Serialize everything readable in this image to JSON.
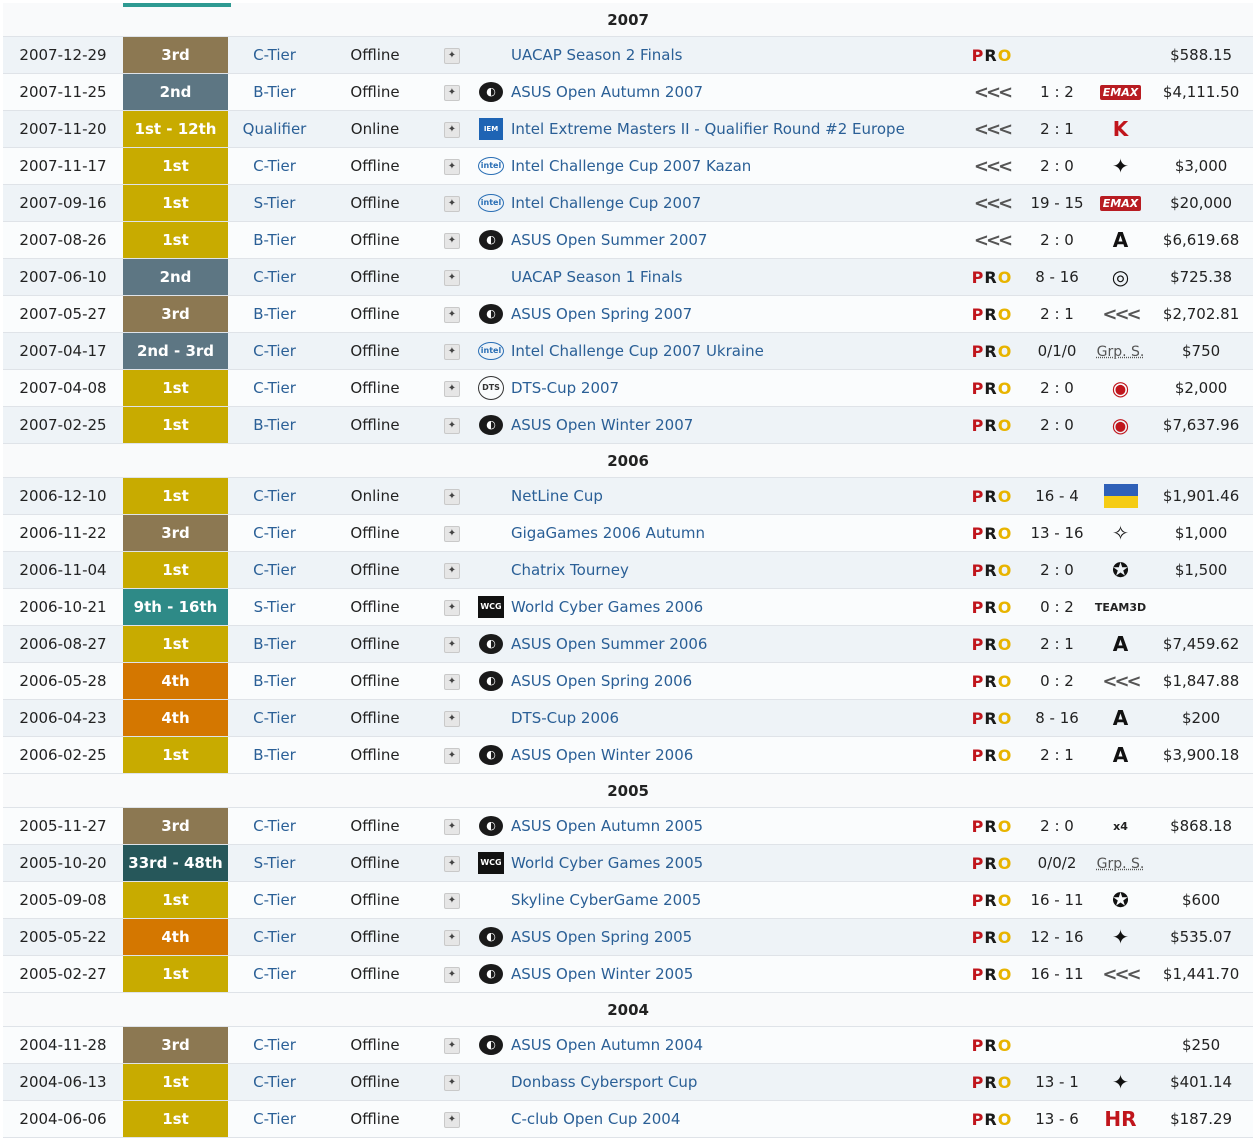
{
  "colors": {
    "1st": "#c8ab00",
    "2nd": "#5d7683",
    "3rd": "#8c7852",
    "4th": "#d47700",
    "qual": "#c8ab00",
    "range_teal": "#2e8a87",
    "range_dark": "#26575a",
    "link": "#2a5f96"
  },
  "table": {
    "groups": [
      {
        "year": "2007",
        "rows": [
          {
            "date": "2007-12-29",
            "place": "3rd",
            "pc": "3rd",
            "tier": "C-Tier",
            "type": "Offline",
            "logo": "",
            "name": "UACAP Season 2 Finals",
            "team": "pro",
            "score": "",
            "opp": "",
            "opp_kind": "none",
            "prize": "$588.15"
          },
          {
            "date": "2007-11-25",
            "place": "2nd",
            "pc": "2nd",
            "tier": "B-Tier",
            "type": "Offline",
            "logo": "asus",
            "name": "ASUS Open Autumn 2007",
            "team": "chev",
            "score": "1 : 2",
            "opp": "EMAX",
            "opp_kind": "emax",
            "prize": "$4,111.50"
          },
          {
            "date": "2007-11-20",
            "place": "1st - 12th",
            "pc": "qual",
            "tier": "Qualifier",
            "type": "Online",
            "logo": "iem",
            "name": "Intel Extreme Masters II - Qualifier Round #2 Europe",
            "team": "chev",
            "score": "2 : 1",
            "opp": "K",
            "opp_kind": "red",
            "prize": ""
          },
          {
            "date": "2007-11-17",
            "place": "1st",
            "pc": "1st",
            "tier": "C-Tier",
            "type": "Offline",
            "logo": "intel",
            "name": "Intel Challenge Cup 2007 Kazan",
            "team": "chev",
            "score": "2 : 0",
            "opp": "✦",
            "opp_kind": "sym",
            "prize": "$3,000"
          },
          {
            "date": "2007-09-16",
            "place": "1st",
            "pc": "1st",
            "tier": "S-Tier",
            "type": "Offline",
            "logo": "intel",
            "name": "Intel Challenge Cup 2007",
            "team": "chev",
            "score": "19 - 15",
            "opp": "EMAX",
            "opp_kind": "emax",
            "prize": "$20,000"
          },
          {
            "date": "2007-08-26",
            "place": "1st",
            "pc": "1st",
            "tier": "B-Tier",
            "type": "Offline",
            "logo": "asus",
            "name": "ASUS Open Summer 2007",
            "team": "chev",
            "score": "2 : 0",
            "opp": "A",
            "opp_kind": "sym",
            "prize": "$6,619.68"
          },
          {
            "date": "2007-06-10",
            "place": "2nd",
            "pc": "2nd",
            "tier": "C-Tier",
            "type": "Offline",
            "logo": "",
            "name": "UACAP Season 1 Finals",
            "team": "pro",
            "score": "8 - 16",
            "opp": "◎",
            "opp_kind": "sym",
            "prize": "$725.38"
          },
          {
            "date": "2007-05-27",
            "place": "3rd",
            "pc": "3rd",
            "tier": "B-Tier",
            "type": "Offline",
            "logo": "asus",
            "name": "ASUS Open Spring 2007",
            "team": "pro",
            "score": "2 : 1",
            "opp": "<<<",
            "opp_kind": "chev",
            "prize": "$2,702.81"
          },
          {
            "date": "2007-04-17",
            "place": "2nd - 3rd",
            "pc": "2nd",
            "tier": "C-Tier",
            "type": "Offline",
            "logo": "intel",
            "name": "Intel Challenge Cup 2007 Ukraine",
            "team": "pro",
            "score": "0/1/0",
            "opp": "Grp. S.",
            "opp_kind": "grp",
            "prize": "$750"
          },
          {
            "date": "2007-04-08",
            "place": "1st",
            "pc": "1st",
            "tier": "C-Tier",
            "type": "Offline",
            "logo": "dts",
            "name": "DTS-Cup 2007",
            "team": "pro",
            "score": "2 : 0",
            "opp": "◉",
            "opp_kind": "red",
            "prize": "$2,000"
          },
          {
            "date": "2007-02-25",
            "place": "1st",
            "pc": "1st",
            "tier": "B-Tier",
            "type": "Offline",
            "logo": "asus",
            "name": "ASUS Open Winter 2007",
            "team": "pro",
            "score": "2 : 0",
            "opp": "◉",
            "opp_kind": "red",
            "prize": "$7,637.96"
          }
        ]
      },
      {
        "year": "2006",
        "rows": [
          {
            "date": "2006-12-10",
            "place": "1st",
            "pc": "1st",
            "tier": "C-Tier",
            "type": "Online",
            "logo": "",
            "name": "NetLine Cup",
            "team": "pro",
            "score": "16 - 4",
            "opp": "",
            "opp_kind": "flag",
            "prize": "$1,901.46"
          },
          {
            "date": "2006-11-22",
            "place": "3rd",
            "pc": "3rd",
            "tier": "C-Tier",
            "type": "Offline",
            "logo": "",
            "name": "GigaGames 2006 Autumn",
            "team": "pro",
            "score": "13 - 16",
            "opp": "✧",
            "opp_kind": "sym",
            "prize": "$1,000"
          },
          {
            "date": "2006-11-04",
            "place": "1st",
            "pc": "1st",
            "tier": "C-Tier",
            "type": "Offline",
            "logo": "",
            "name": "Chatrix Tourney",
            "team": "pro",
            "score": "2 : 0",
            "opp": "✪",
            "opp_kind": "sym",
            "prize": "$1,500"
          },
          {
            "date": "2006-10-21",
            "place": "9th - 16th",
            "pc": "range_teal",
            "tier": "S-Tier",
            "type": "Offline",
            "logo": "wcg",
            "name": "World Cyber Games 2006",
            "team": "pro",
            "score": "0 : 2",
            "opp": "TEAM3D",
            "opp_kind": "text",
            "prize": ""
          },
          {
            "date": "2006-08-27",
            "place": "1st",
            "pc": "1st",
            "tier": "B-Tier",
            "type": "Offline",
            "logo": "asus",
            "name": "ASUS Open Summer 2006",
            "team": "pro",
            "score": "2 : 1",
            "opp": "A",
            "opp_kind": "sym",
            "prize": "$7,459.62"
          },
          {
            "date": "2006-05-28",
            "place": "4th",
            "pc": "4th",
            "tier": "B-Tier",
            "type": "Offline",
            "logo": "asus",
            "name": "ASUS Open Spring 2006",
            "team": "pro",
            "score": "0 : 2",
            "opp": "<<<",
            "opp_kind": "chev",
            "prize": "$1,847.88"
          },
          {
            "date": "2006-04-23",
            "place": "4th",
            "pc": "4th",
            "tier": "C-Tier",
            "type": "Offline",
            "logo": "",
            "name": "DTS-Cup 2006",
            "team": "pro",
            "score": "8 - 16",
            "opp": "A",
            "opp_kind": "sym",
            "prize": "$200"
          },
          {
            "date": "2006-02-25",
            "place": "1st",
            "pc": "1st",
            "tier": "B-Tier",
            "type": "Offline",
            "logo": "asus",
            "name": "ASUS Open Winter 2006",
            "team": "pro",
            "score": "2 : 1",
            "opp": "A",
            "opp_kind": "sym",
            "prize": "$3,900.18"
          }
        ]
      },
      {
        "year": "2005",
        "rows": [
          {
            "date": "2005-11-27",
            "place": "3rd",
            "pc": "3rd",
            "tier": "C-Tier",
            "type": "Offline",
            "logo": "asus",
            "name": "ASUS Open Autumn 2005",
            "team": "pro",
            "score": "2 : 0",
            "opp": "x4",
            "opp_kind": "text",
            "prize": "$868.18"
          },
          {
            "date": "2005-10-20",
            "place": "33rd - 48th",
            "pc": "range_dark",
            "tier": "S-Tier",
            "type": "Offline",
            "logo": "wcg",
            "name": "World Cyber Games 2005",
            "team": "pro",
            "score": "0/0/2",
            "opp": "Grp. S.",
            "opp_kind": "grp",
            "prize": ""
          },
          {
            "date": "2005-09-08",
            "place": "1st",
            "pc": "1st",
            "tier": "C-Tier",
            "type": "Offline",
            "logo": "",
            "name": "Skyline CyberGame 2005",
            "team": "pro",
            "score": "16 - 11",
            "opp": "✪",
            "opp_kind": "sym",
            "prize": "$600"
          },
          {
            "date": "2005-05-22",
            "place": "4th",
            "pc": "4th",
            "tier": "C-Tier",
            "type": "Offline",
            "logo": "asus",
            "name": "ASUS Open Spring 2005",
            "team": "pro",
            "score": "12 - 16",
            "opp": "✦",
            "opp_kind": "sym",
            "prize": "$535.07"
          },
          {
            "date": "2005-02-27",
            "place": "1st",
            "pc": "1st",
            "tier": "C-Tier",
            "type": "Offline",
            "logo": "asus",
            "name": "ASUS Open Winter 2005",
            "team": "pro",
            "score": "16 - 11",
            "opp": "<<<",
            "opp_kind": "chev",
            "prize": "$1,441.70"
          }
        ]
      },
      {
        "year": "2004",
        "rows": [
          {
            "date": "2004-11-28",
            "place": "3rd",
            "pc": "3rd",
            "tier": "C-Tier",
            "type": "Offline",
            "logo": "asus",
            "name": "ASUS Open Autumn 2004",
            "team": "pro",
            "score": "",
            "opp": "",
            "opp_kind": "none",
            "prize": "$250"
          },
          {
            "date": "2004-06-13",
            "place": "1st",
            "pc": "1st",
            "tier": "C-Tier",
            "type": "Offline",
            "logo": "",
            "name": "Donbass Cybersport Cup",
            "team": "pro",
            "score": "13 - 1",
            "opp": "✦",
            "opp_kind": "sym",
            "prize": "$401.14"
          },
          {
            "date": "2004-06-06",
            "place": "1st",
            "pc": "1st",
            "tier": "C-Tier",
            "type": "Offline",
            "logo": "",
            "name": "C-club Open Cup 2004",
            "team": "pro",
            "score": "13 - 6",
            "opp": "HR",
            "opp_kind": "red",
            "prize": "$187.29"
          }
        ]
      }
    ]
  }
}
